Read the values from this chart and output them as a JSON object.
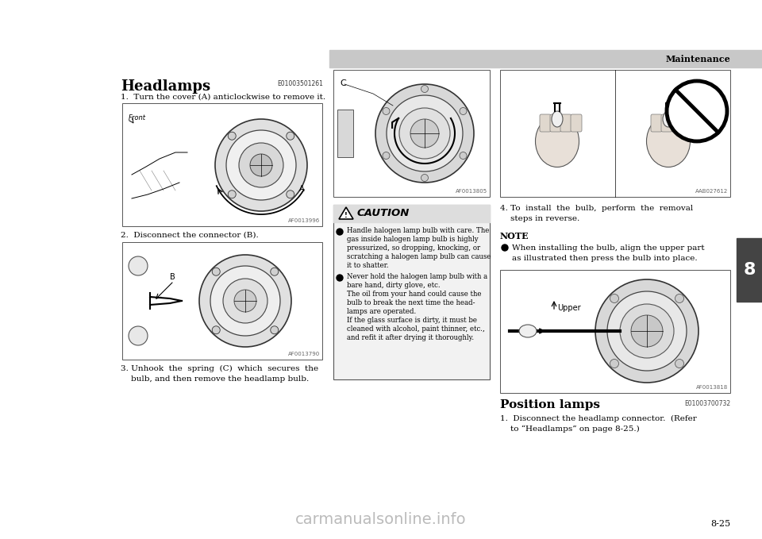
{
  "bg_color": "#ffffff",
  "header_bar_color": "#c8c8c8",
  "header_text": "Maintenance",
  "section_number": "8",
  "page_number": "8-25",
  "title": "Headlamps",
  "title_code": "E01003501261",
  "step1_text": "1.  Turn the cover (A) anticlockwise to remove it.",
  "step2_text": "2.  Disconnect the connector (B).",
  "step3_text_line1": "3. Unhook  the  spring  (C)  which  secures  the",
  "step3_text_line2": "    bulb, and then remove the headlamp bulb.",
  "step4_text_line1": "4. To  install  the  bulb,  perform  the  removal",
  "step4_text_line2": "    steps in reverse.",
  "note_title": "NOTE",
  "note_bullet": "When installing the bulb, align the upper part",
  "note_bullet2": "as illustrated then press the bulb into place.",
  "caution_title": "CAUTION",
  "caution_b1_lines": [
    "Handle halogen lamp bulb with care. The",
    "gas inside halogen lamp bulb is highly",
    "pressurized, so dropping, knocking, or",
    "scratching a halogen lamp bulb can cause",
    "it to shatter."
  ],
  "caution_b2_lines": [
    "Never hold the halogen lamp bulb with a",
    "bare hand, dirty glove, etc.",
    "The oil from your hand could cause the",
    "bulb to break the next time the head-",
    "lamps are operated.",
    "If the glass surface is dirty, it must be",
    "cleaned with alcohol, paint thinner, etc.,",
    "and refit it after drying it thoroughly."
  ],
  "position_lamps_title": "Position lamps",
  "position_lamps_code": "E01003700732",
  "pos_step1_line1": "1.  Disconnect the headlamp connector.  (Refer",
  "pos_step1_line2": "    to “Headlamps” on page 8-25.)",
  "img1_label": "AF0013996",
  "img2_label": "AF0013790",
  "img3_label": "AF0013805",
  "img4_label": "AAB027612",
  "img5_label": "AF0013818",
  "watermark": "carmanualsonline.info"
}
